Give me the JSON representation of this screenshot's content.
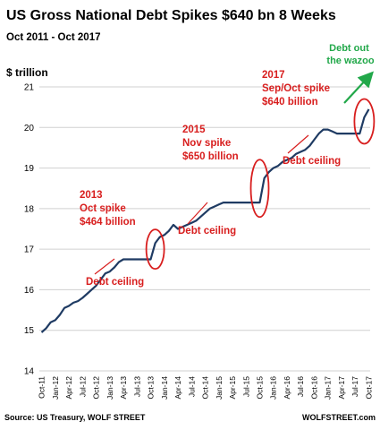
{
  "chart_data": {
    "type": "line",
    "title": "US Gross National Debt Spikes $640 bn  8 Weeks",
    "subtitle": "Oct 2011 - Oct 2017",
    "ylabel": "$ trillion",
    "ylim": [
      14,
      21
    ],
    "yticks": [
      14,
      15,
      16,
      17,
      18,
      19,
      20,
      21
    ],
    "xlim": [
      "2011-10",
      "2017-10"
    ],
    "xticks": [
      "Oct-11",
      "Jan-12",
      "Apr-12",
      "Jul-12",
      "Oct-12",
      "Jan-13",
      "Apr-13",
      "Jul-13",
      "Oct-13",
      "Jan-14",
      "Apr-14",
      "Jul-14",
      "Oct-14",
      "Jan-15",
      "Apr-15",
      "Jul-15",
      "Oct-15",
      "Jan-16",
      "Apr-16",
      "Jul-16",
      "Oct-16",
      "Jan-17",
      "Apr-17",
      "Jul-17",
      "Oct-17"
    ],
    "grid": "horizontal",
    "line_color": "#1f3b63",
    "series": [
      {
        "x": [
          "2011-10",
          "2011-11",
          "2011-12",
          "2012-01",
          "2012-02",
          "2012-03",
          "2012-04",
          "2012-05",
          "2012-06",
          "2012-07",
          "2012-08",
          "2012-09",
          "2012-10",
          "2012-11",
          "2012-12",
          "2013-01",
          "2013-02",
          "2013-03",
          "2013-04",
          "2013-05",
          "2013-06",
          "2013-07",
          "2013-08",
          "2013-09",
          "2013-10",
          "2013-11",
          "2013-12",
          "2014-01",
          "2014-02",
          "2014-03",
          "2014-04",
          "2014-05",
          "2014-06",
          "2014-07",
          "2014-08",
          "2014-09",
          "2014-10",
          "2014-11",
          "2014-12",
          "2015-01",
          "2015-02",
          "2015-03",
          "2015-04",
          "2015-05",
          "2015-06",
          "2015-07",
          "2015-08",
          "2015-09",
          "2015-10",
          "2015-11",
          "2015-12",
          "2016-01",
          "2016-02",
          "2016-03",
          "2016-04",
          "2016-05",
          "2016-06",
          "2016-07",
          "2016-08",
          "2016-09",
          "2016-10",
          "2016-11",
          "2016-12",
          "2017-01",
          "2017-02",
          "2017-03",
          "2017-04",
          "2017-05",
          "2017-06",
          "2017-07",
          "2017-08",
          "2017-09",
          "2017-10"
        ],
        "values": [
          14.95,
          15.05,
          15.2,
          15.25,
          15.38,
          15.55,
          15.6,
          15.68,
          15.72,
          15.8,
          15.9,
          16.0,
          16.1,
          16.25,
          16.4,
          16.45,
          16.55,
          16.68,
          16.75,
          16.75,
          16.75,
          16.75,
          16.75,
          16.75,
          16.75,
          17.15,
          17.3,
          17.35,
          17.45,
          17.6,
          17.5,
          17.55,
          17.6,
          17.65,
          17.7,
          17.8,
          17.9,
          18.0,
          18.05,
          18.1,
          18.15,
          18.15,
          18.15,
          18.15,
          18.15,
          18.15,
          18.15,
          18.15,
          18.15,
          18.75,
          18.9,
          19.0,
          19.05,
          19.15,
          19.2,
          19.25,
          19.35,
          19.4,
          19.45,
          19.55,
          19.7,
          19.85,
          19.95,
          19.95,
          19.9,
          19.85,
          19.85,
          19.85,
          19.85,
          19.85,
          19.85,
          20.25,
          20.45
        ]
      }
    ],
    "annotations": [
      {
        "lines": [
          "2013",
          "Oct spike",
          "$464 billion"
        ],
        "color": "#d81e1e",
        "at": [
          "2013-10",
          17.0
        ]
      },
      {
        "lines": [
          "Debt ceiling"
        ],
        "color": "#d81e1e",
        "at": [
          "2013-06",
          16.75
        ]
      },
      {
        "lines": [
          "2015",
          "Nov spike",
          "$650 billion"
        ],
        "color": "#d81e1e",
        "at": [
          "2015-10",
          18.5
        ]
      },
      {
        "lines": [
          "Debt ceiling"
        ],
        "color": "#d81e1e",
        "at": [
          "2015-06",
          18.15
        ]
      },
      {
        "lines": [
          "2017",
          "Sep/Oct spike",
          "$640 billion"
        ],
        "color": "#d81e1e",
        "at": [
          "2017-09",
          20.2
        ]
      },
      {
        "lines": [
          "Debt ceiling"
        ],
        "color": "#d81e1e",
        "at": [
          "2017-05",
          19.85
        ]
      },
      {
        "lines": [
          "Debt out",
          "the wazoo"
        ],
        "color": "#22a84a",
        "at": [
          "2017-10",
          20.6
        ]
      }
    ]
  },
  "footer": {
    "source": "Source: US Treasury, WOLF STREET",
    "brand": "WOLFSTREET.com"
  }
}
